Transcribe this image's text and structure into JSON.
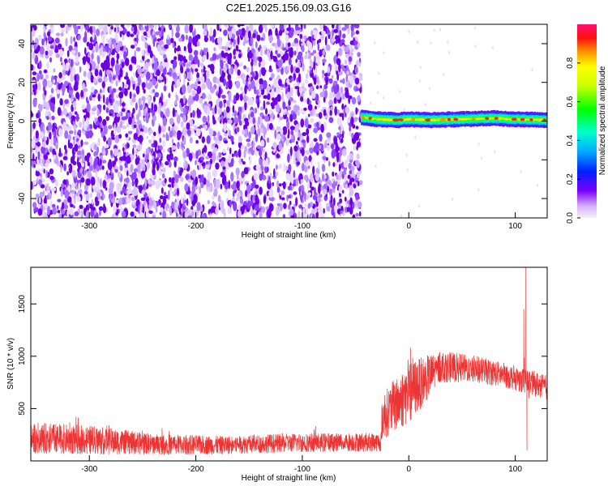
{
  "title": "C2E1.2025.156.09.03.G16",
  "chart_data": [
    {
      "type": "heatmap",
      "xlabel": "Height of straight line (km)",
      "ylabel": "Frequency (Hz)",
      "xlim": [
        -355,
        130
      ],
      "ylim": [
        -50,
        50
      ],
      "x_ticks": [
        -300,
        -200,
        -100,
        0,
        100
      ],
      "y_ticks": [
        -40,
        -20,
        0,
        20,
        40
      ],
      "noise_region_x": [
        -355,
        -45
      ],
      "signal_band": {
        "x_range": [
          -45,
          130
        ],
        "center_hz": [
          [
            -45,
            2
          ],
          [
            -30,
            1
          ],
          [
            -10,
            0.5
          ],
          [
            0,
            1
          ],
          [
            20,
            0.5
          ],
          [
            50,
            1
          ],
          [
            80,
            1.5
          ],
          [
            100,
            1
          ],
          [
            130,
            0.5
          ]
        ],
        "width_hz": 4
      },
      "colorbar": {
        "label": "Normalized spectral amplitude",
        "range": [
          0,
          1
        ],
        "ticks": [
          "0.0",
          "0.2",
          "0.4",
          "0.6",
          "0.8"
        ]
      }
    },
    {
      "type": "line",
      "xlabel": "Height of straight line (km)",
      "ylabel": "SNR (10 * v/v)",
      "xlim": [
        -355,
        130
      ],
      "ylim": [
        0,
        1850
      ],
      "x_ticks": [
        -300,
        -200,
        -100,
        0,
        100
      ],
      "y_ticks": [
        500,
        1000,
        1500
      ],
      "color": "#ee3333",
      "envelope": [
        {
          "x": -355,
          "mean": 220,
          "spread": 150
        },
        {
          "x": -300,
          "mean": 200,
          "spread": 140
        },
        {
          "x": -240,
          "mean": 160,
          "spread": 100
        },
        {
          "x": -180,
          "mean": 150,
          "spread": 90
        },
        {
          "x": -120,
          "mean": 170,
          "spread": 90
        },
        {
          "x": -60,
          "mean": 180,
          "spread": 90
        },
        {
          "x": -26,
          "mean": 180,
          "spread": 90
        },
        {
          "x": -25,
          "mean": 420,
          "spread": 220
        },
        {
          "x": 0,
          "mean": 650,
          "spread": 300
        },
        {
          "x": 30,
          "mean": 900,
          "spread": 150
        },
        {
          "x": 60,
          "mean": 880,
          "spread": 130
        },
        {
          "x": 90,
          "mean": 820,
          "spread": 120
        },
        {
          "x": 105,
          "mean": 780,
          "spread": 120
        },
        {
          "x": 130,
          "mean": 700,
          "spread": 120
        }
      ],
      "spikes": [
        {
          "x": 108,
          "y": 1450
        },
        {
          "x": 110,
          "y": 1850
        },
        {
          "x": 111,
          "y": 100
        },
        {
          "x": 113,
          "y": 600
        }
      ]
    }
  ]
}
